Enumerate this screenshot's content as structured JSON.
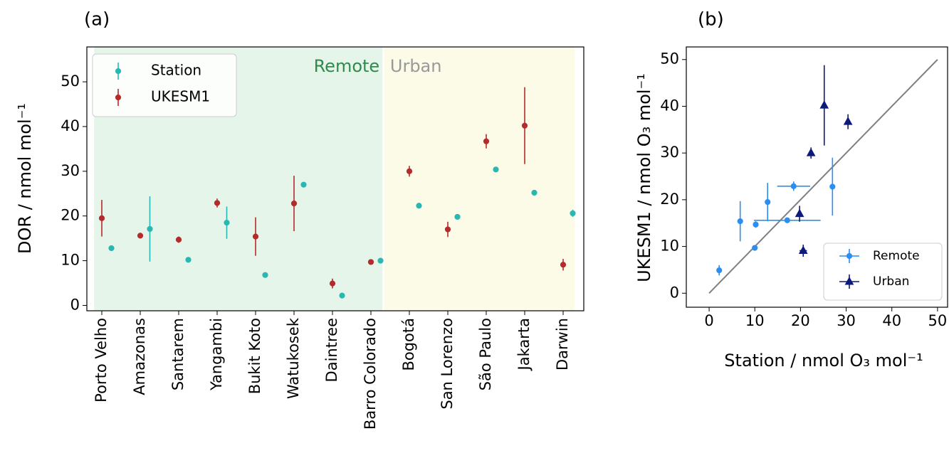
{
  "chart_data": [
    {
      "type": "errorbar",
      "panel_label": "(a)",
      "ylabel": "DOR / nmol mol⁻¹",
      "categories": [
        "Porto Velho",
        "Amazonas",
        "Santarem",
        "Yangambi",
        "Bukit Koto",
        "Watukosek",
        "Daintree",
        "Barro Colorado",
        "Bogotá",
        "San Lorenzo",
        "São Paulo",
        "Jakarta",
        "Darwin"
      ],
      "series": [
        {
          "name": "Station",
          "color": "#27b8b3",
          "values": [
            12.8,
            17.1,
            10.2,
            18.5,
            6.8,
            27.0,
            2.2,
            10.0,
            22.3,
            19.8,
            30.4,
            25.2,
            20.6
          ],
          "errors": [
            0.3,
            7.3,
            0.3,
            3.6,
            0.2,
            0.3,
            0.2,
            0.3,
            0.2,
            0.4,
            0.3,
            0.3,
            0.8
          ]
        },
        {
          "name": "UKESM1",
          "color": "#b52a2a",
          "values": [
            19.5,
            15.6,
            14.7,
            22.9,
            15.4,
            22.8,
            4.9,
            9.7,
            30.0,
            17.0,
            36.7,
            40.2,
            9.1
          ],
          "errors": [
            4.1,
            0.3,
            0.7,
            1.0,
            4.3,
            6.2,
            1.1,
            0.4,
            1.2,
            1.7,
            1.6,
            8.6,
            1.3
          ]
        }
      ],
      "regions": [
        {
          "label": "Remote",
          "from": "Porto Velho",
          "to": "Barro Colorado",
          "color": "#e6f5ea",
          "text_color": "#2e8b4a"
        },
        {
          "label": "Urban",
          "from": "Bogotá",
          "to": "Darwin",
          "color": "#fbfbe8",
          "text_color": "#999999"
        }
      ],
      "ylim": [
        -1.2,
        57.8
      ],
      "yticks": [
        0,
        10,
        20,
        30,
        40,
        50
      ],
      "legend": "upper left"
    },
    {
      "type": "scatter",
      "panel_label": "(b)",
      "xlabel": "Station / nmol O₃ mol⁻¹",
      "ylabel": "UKESM1 / nmol O₃ mol⁻¹",
      "series": [
        {
          "name": "Remote",
          "color": "#2b8ef0",
          "marker": "circle",
          "x": [
            12.8,
            17.1,
            10.2,
            18.5,
            6.8,
            27.0,
            2.2,
            10.0
          ],
          "x_errors": [
            0.3,
            7.3,
            0.3,
            3.6,
            0.2,
            0.3,
            0.2,
            0.3
          ],
          "values": [
            19.5,
            15.6,
            14.7,
            22.9,
            15.4,
            22.8,
            4.9,
            9.7
          ],
          "errors": [
            4.1,
            0.3,
            0.7,
            1.0,
            4.3,
            6.2,
            1.1,
            0.4
          ]
        },
        {
          "name": "Urban",
          "color": "#0d1a7a",
          "marker": "triangle",
          "x": [
            22.3,
            19.8,
            30.4,
            25.2,
            20.6
          ],
          "x_errors": [
            0.2,
            0.4,
            0.3,
            0.3,
            0.8
          ],
          "values": [
            30.0,
            17.0,
            36.7,
            40.2,
            9.1
          ],
          "errors": [
            1.2,
            1.7,
            1.6,
            8.6,
            1.3
          ]
        }
      ],
      "reference_line": {
        "x": [
          0,
          50
        ],
        "y": [
          0,
          50
        ],
        "color": "#808080"
      },
      "xlim": [
        -5,
        52.2
      ],
      "ylim": [
        -3,
        52.7
      ],
      "xticks": [
        0,
        10,
        20,
        30,
        40,
        50
      ],
      "yticks": [
        0,
        10,
        20,
        30,
        40,
        50
      ],
      "legend": "lower right"
    }
  ]
}
